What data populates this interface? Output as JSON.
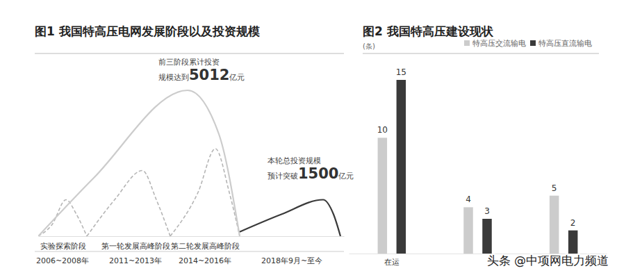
{
  "chart_data": [
    {
      "type": "line",
      "title": "图1 我国特高压电网发展阶段以及投资规模",
      "categories": [
        "实验探索阶段",
        "第一轮发展高峰阶段",
        "第二轮发展高峰阶段",
        null
      ],
      "x": [
        35,
        140,
        240,
        365
      ],
      "periods": [
        "2006~2008年",
        "2011~2013年",
        "2014~2016年",
        "2018年9月~至今"
      ],
      "xlim": [
        0,
        440
      ],
      "ylim": [
        0,
        10
      ],
      "tick_labels": "x",
      "series": [
        {
          "x": [
            0,
            20,
            40,
            55,
            70
          ],
          "values": [
            0,
            0.8,
            2.5,
            1.5,
            0
          ],
          "color": "#b5b5b5",
          "line_style": "dashed"
        },
        {
          "x": [
            70,
            110,
            150,
            170,
            190
          ],
          "values": [
            0,
            2.5,
            4.5,
            2.5,
            0
          ],
          "color": "#b5b5b5",
          "line_style": "dashed"
        },
        {
          "x": [
            190,
            230,
            255,
            275,
            290
          ],
          "values": [
            0,
            3,
            6,
            3,
            0
          ],
          "color": "#b5b5b5",
          "line_style": "dashed"
        },
        {
          "x": [
            0,
            80,
            215,
            260,
            290
          ],
          "values": [
            0,
            4,
            10,
            7,
            0
          ],
          "color": "#cccccc",
          "line_style": "solid",
          "annotation": {
            "lines": [
              "前三阶段累计投资",
              "规模达到"
            ],
            "value": 5012,
            "unit": "亿元"
          }
        },
        {
          "x": [
            290,
            350,
            410,
            425,
            435
          ],
          "values": [
            0.3,
            1.5,
            2.5,
            1.5,
            0
          ],
          "color": "#3a3a3a",
          "line_style": "solid",
          "annotation": {
            "lines": [
              "本轮总投资规模",
              "预计突破"
            ],
            "value": 1500,
            "unit": "亿元"
          }
        }
      ]
    },
    {
      "type": "bar",
      "title": "图2 我国特高压建设现状",
      "ylabel": "(条)",
      "categories": [
        "在运",
        null,
        null
      ],
      "series": [
        {
          "name": "特高压交流输电",
          "color": "#cccccc",
          "values": [
            10,
            4,
            5
          ]
        },
        {
          "name": "特高压直流输电",
          "color": "#3a3a3a",
          "values": [
            15,
            3,
            2
          ]
        }
      ],
      "ylim": [
        0,
        15
      ],
      "data_labels": true,
      "legend": "top-right",
      "tick_labels": "x"
    }
  ],
  "watermark": "头条 @中项网电力频道"
}
